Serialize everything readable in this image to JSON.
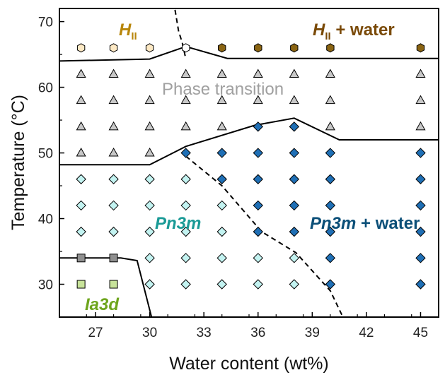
{
  "chart_data": {
    "type": "scatter",
    "title": "",
    "xlabel": "Water content (wt%)",
    "ylabel": "Temperature (°C)",
    "xlim": [
      25.0,
      46.0
    ],
    "ylim": [
      25.0,
      72.0
    ],
    "xticks": [
      27,
      30,
      33,
      36,
      39,
      42,
      45
    ],
    "yticks": [
      30,
      40,
      50,
      60,
      70
    ],
    "grid": false,
    "colors": {
      "HII": "#fde9c4",
      "HII_water": "#8a6412",
      "transition": "#c8c8c8",
      "Pn3m": "#c3f3f1",
      "Pn3m_water": "#1f6fb5",
      "Ia3d": "#c8e39a",
      "Ia3d_Pn3m": "#8f8f8f",
      "label_HII": "#b8860b",
      "label_HII_water": "#7a4a08",
      "label_transition": "#a0a0a0",
      "label_Pn3m": "#1a9a96",
      "label_Pn3m_water": "#0b4f78",
      "label_Ia3d": "#6ea51d"
    },
    "annotations": {
      "HII": {
        "base": "H",
        "sub": "II",
        "suffix": ""
      },
      "HII_water": {
        "base": "H",
        "sub": "II",
        "suffix": " + water"
      },
      "transition": {
        "text": "Phase transition"
      },
      "Pn3m": {
        "text": "Pn3m"
      },
      "Pn3m_water": {
        "italic": "Pn3m",
        "normal": " + water"
      },
      "Ia3d": {
        "text": "Ia3d"
      }
    },
    "series": [
      {
        "class": "HII",
        "marker": "hexagon",
        "points": [
          [
            26.2,
            66
          ],
          [
            28.0,
            66
          ],
          [
            30.0,
            66
          ]
        ]
      },
      {
        "class": "HII_water",
        "marker": "hexagon",
        "points": [
          [
            34.0,
            66
          ],
          [
            36.0,
            66
          ],
          [
            38.0,
            66
          ],
          [
            40.0,
            66
          ],
          [
            45.0,
            66
          ]
        ]
      },
      {
        "class": "transition",
        "marker": "hexagon-open",
        "points": [
          [
            32.0,
            66
          ]
        ]
      },
      {
        "class": "transition",
        "marker": "triangle",
        "points": [
          [
            26.2,
            62
          ],
          [
            28.0,
            62
          ],
          [
            30.0,
            62
          ],
          [
            32.0,
            62
          ],
          [
            34.0,
            62
          ],
          [
            36.0,
            62
          ],
          [
            38.0,
            62
          ],
          [
            40.0,
            62
          ],
          [
            45.0,
            62
          ],
          [
            26.2,
            58
          ],
          [
            28.0,
            58
          ],
          [
            30.0,
            58
          ],
          [
            32.0,
            58
          ],
          [
            34.0,
            58
          ],
          [
            36.0,
            58
          ],
          [
            38.0,
            58
          ],
          [
            40.0,
            58
          ],
          [
            45.0,
            58
          ],
          [
            26.2,
            54
          ],
          [
            28.0,
            54
          ],
          [
            30.0,
            54
          ],
          [
            32.0,
            54
          ],
          [
            34.0,
            54
          ],
          [
            40.0,
            54
          ],
          [
            45.0,
            54
          ],
          [
            26.2,
            50
          ],
          [
            28.0,
            50
          ],
          [
            30.0,
            50
          ]
        ]
      },
      {
        "class": "Pn3m",
        "marker": "diamond",
        "points": [
          [
            26.2,
            46
          ],
          [
            28.0,
            46
          ],
          [
            30.0,
            46
          ],
          [
            32.0,
            46
          ],
          [
            26.2,
            42
          ],
          [
            28.0,
            42
          ],
          [
            30.0,
            42
          ],
          [
            32.0,
            42
          ],
          [
            34.0,
            42
          ],
          [
            26.2,
            38
          ],
          [
            28.0,
            38
          ],
          [
            30.0,
            38
          ],
          [
            32.0,
            38
          ],
          [
            34.0,
            38
          ],
          [
            30.0,
            34
          ],
          [
            32.0,
            34
          ],
          [
            34.0,
            34
          ],
          [
            36.0,
            34
          ],
          [
            38.0,
            34
          ],
          [
            30.0,
            30
          ],
          [
            32.0,
            30
          ],
          [
            34.0,
            30
          ],
          [
            36.0,
            30
          ],
          [
            38.0,
            30
          ]
        ]
      },
      {
        "class": "Pn3m_water",
        "marker": "diamond",
        "points": [
          [
            36.0,
            54
          ],
          [
            38.0,
            54
          ],
          [
            32.0,
            50
          ],
          [
            34.0,
            50
          ],
          [
            36.0,
            50
          ],
          [
            38.0,
            50
          ],
          [
            40.0,
            50
          ],
          [
            45.0,
            50
          ],
          [
            34.0,
            46
          ],
          [
            36.0,
            46
          ],
          [
            38.0,
            46
          ],
          [
            40.0,
            46
          ],
          [
            45.0,
            46
          ],
          [
            36.0,
            42
          ],
          [
            38.0,
            42
          ],
          [
            40.0,
            42
          ],
          [
            45.0,
            42
          ],
          [
            36.0,
            38
          ],
          [
            38.0,
            38
          ],
          [
            40.0,
            38
          ],
          [
            45.0,
            38
          ],
          [
            40.0,
            34
          ],
          [
            45.0,
            34
          ],
          [
            40.0,
            30
          ],
          [
            45.0,
            30
          ]
        ]
      },
      {
        "class": "Ia3d_Pn3m",
        "marker": "square",
        "points": [
          [
            26.2,
            34
          ],
          [
            28.0,
            34
          ]
        ]
      },
      {
        "class": "Ia3d",
        "marker": "square",
        "points": [
          [
            26.2,
            30
          ],
          [
            28.0,
            30
          ]
        ]
      }
    ],
    "boundaries": [
      {
        "style": "solid",
        "points": [
          [
            25.0,
            64.0
          ],
          [
            30.0,
            64.3
          ],
          [
            32.0,
            66.2
          ],
          [
            34.3,
            64.4
          ],
          [
            46.0,
            64.4
          ]
        ]
      },
      {
        "style": "solid",
        "points": [
          [
            25.0,
            48.2
          ],
          [
            30.0,
            48.2
          ],
          [
            32.0,
            51.0
          ],
          [
            35.8,
            54.2
          ],
          [
            38.0,
            55.3
          ],
          [
            40.5,
            52.0
          ],
          [
            46.0,
            52.0
          ]
        ]
      },
      {
        "style": "solid",
        "points": [
          [
            25.0,
            34.0
          ],
          [
            28.4,
            34.0
          ],
          [
            29.3,
            33.6
          ],
          [
            30.1,
            25.0
          ]
        ]
      },
      {
        "style": "dashed",
        "points": [
          [
            31.4,
            71.8
          ],
          [
            31.6,
            68.5
          ],
          [
            31.8,
            66.8
          ],
          [
            32.0,
            64.3
          ]
        ]
      },
      {
        "style": "dashed",
        "points": [
          [
            32.0,
            49.5
          ],
          [
            34.0,
            45.0
          ],
          [
            36.2,
            38.0
          ],
          [
            38.1,
            34.8
          ],
          [
            40.0,
            29.0
          ],
          [
            40.7,
            25.0
          ]
        ]
      }
    ]
  }
}
